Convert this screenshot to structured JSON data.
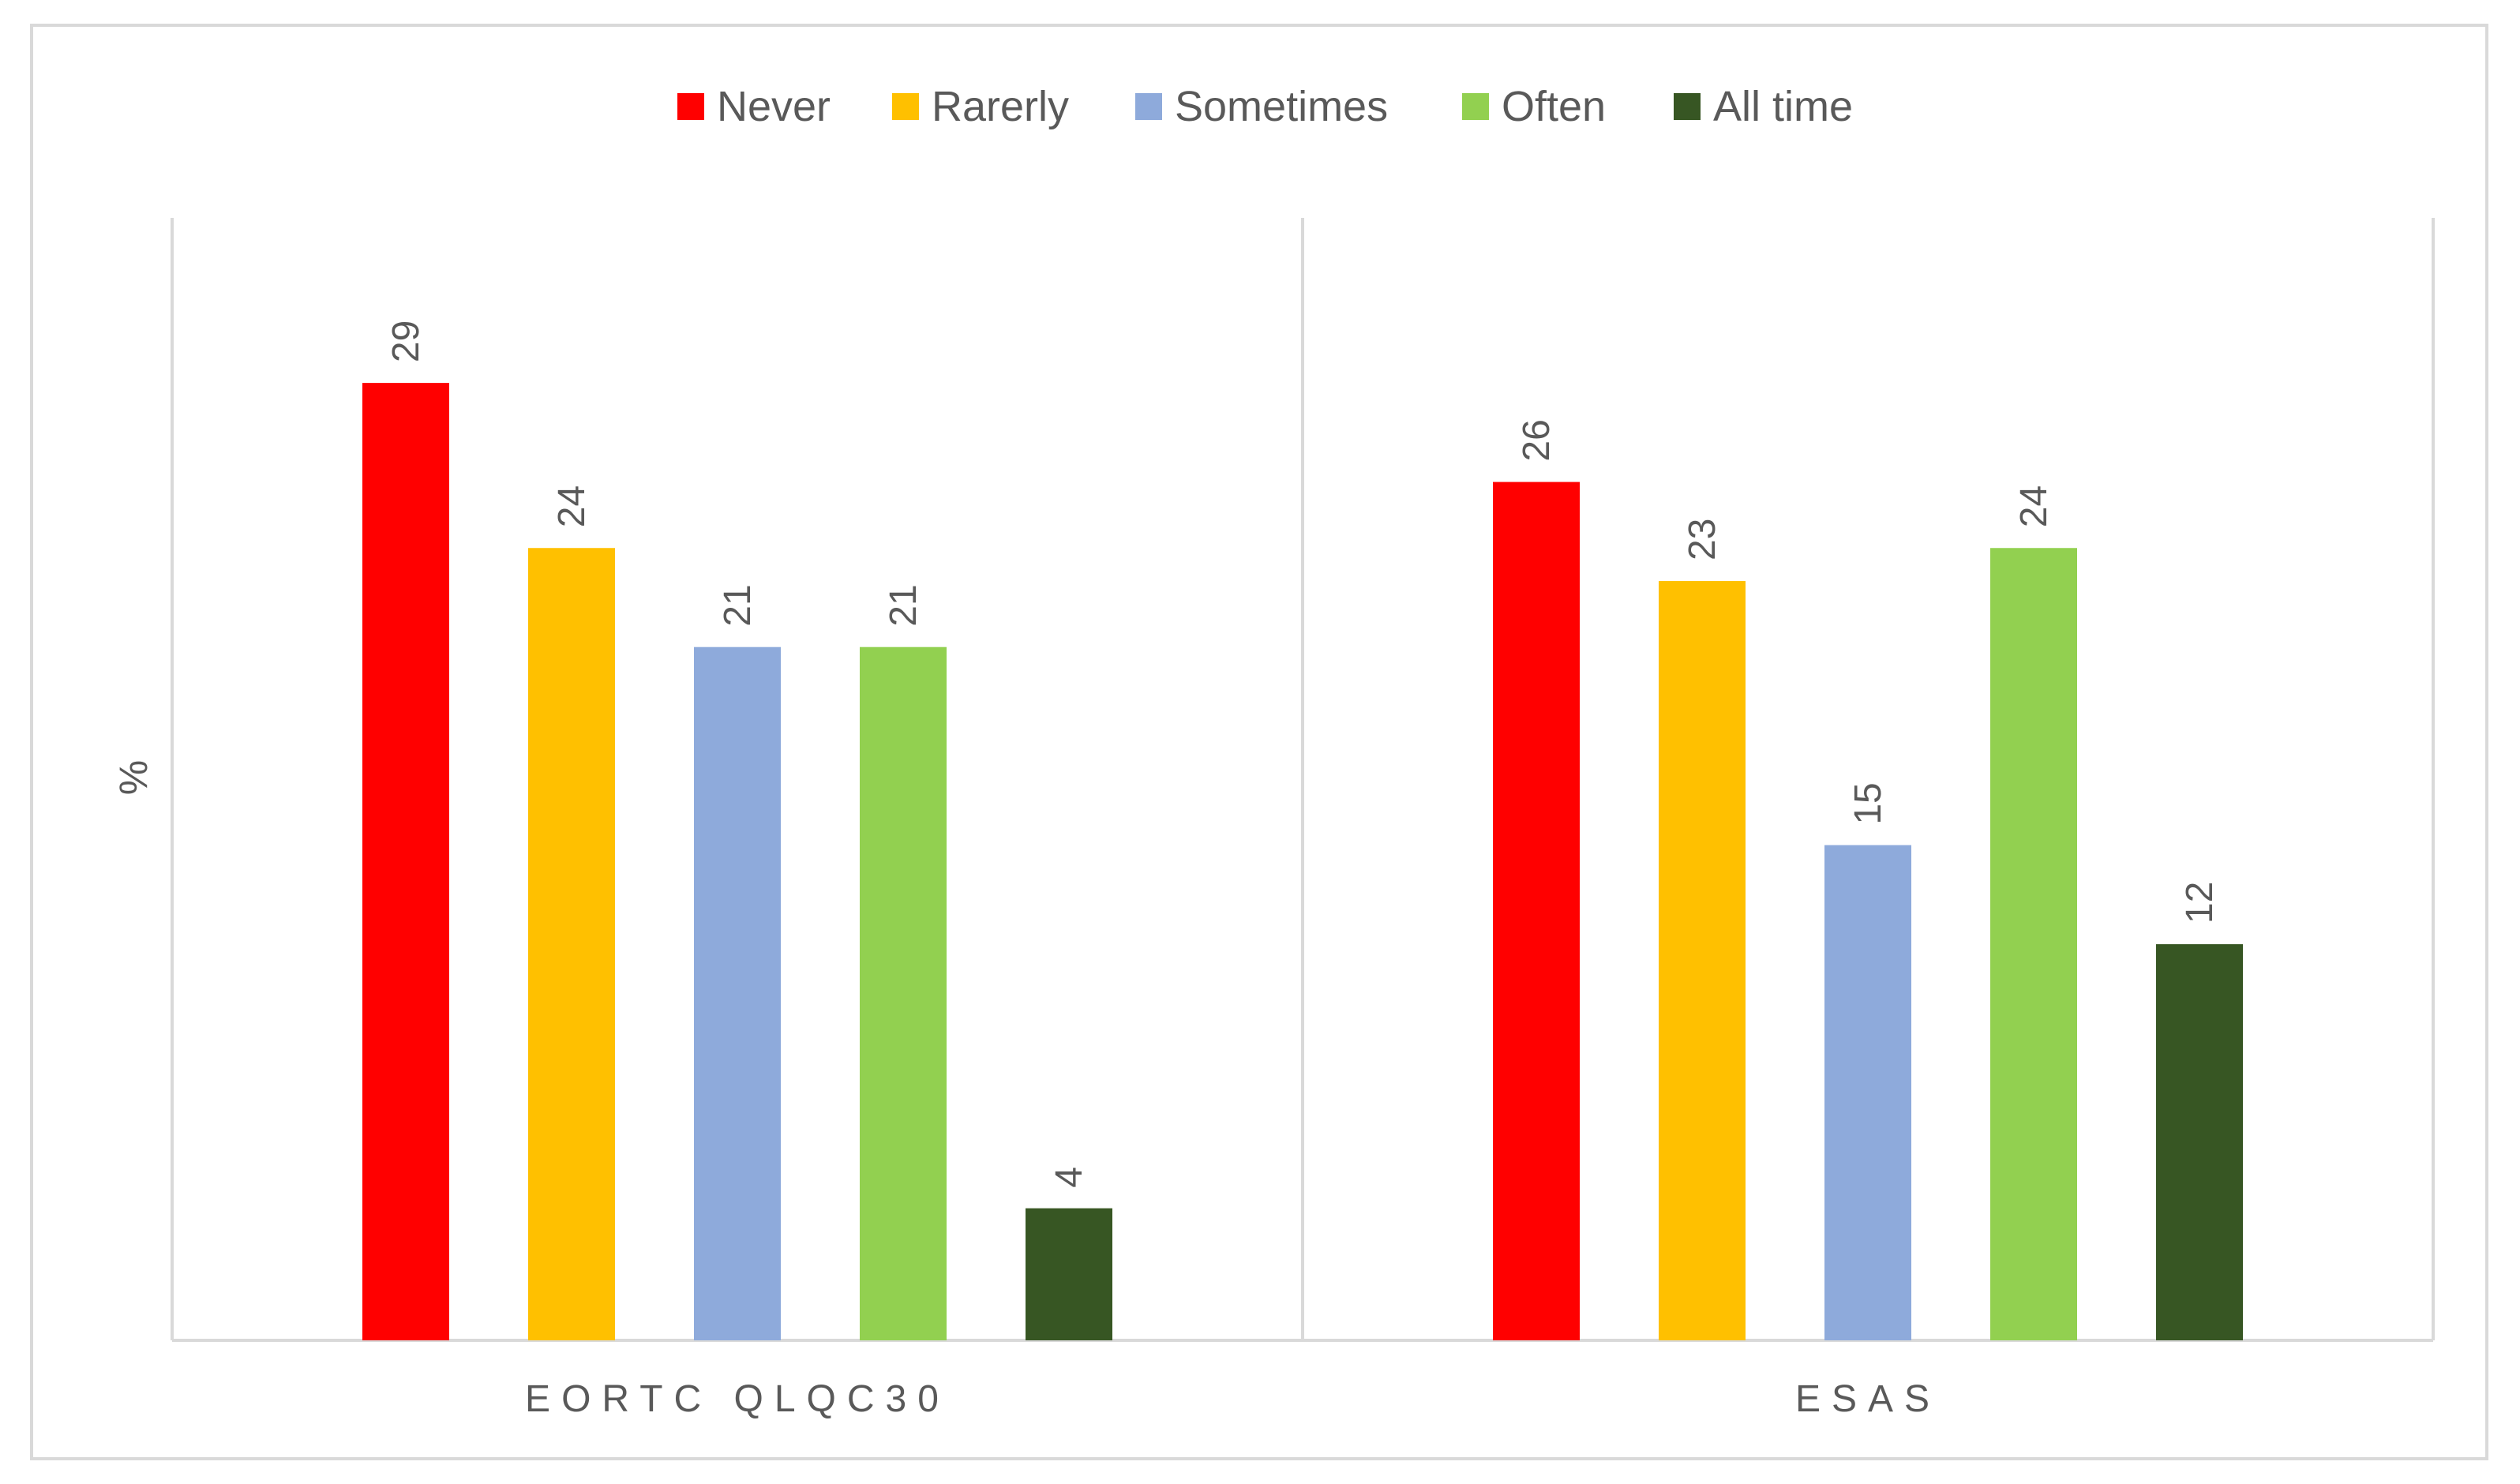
{
  "chart_data": {
    "type": "bar",
    "title": "",
    "xlabel": "",
    "ylabel": "%",
    "categories": [
      "EORTC QLQC30",
      "ESAS"
    ],
    "ylim": [
      0,
      34
    ],
    "grid": false,
    "legend_position": "top-center",
    "series": [
      {
        "name": "Never",
        "color": "#ff0000",
        "values": [
          29,
          26
        ]
      },
      {
        "name": "Rarerly",
        "color": "#ffc000",
        "values": [
          24,
          23
        ]
      },
      {
        "name": "Sometimes",
        "color": "#8eaadb",
        "values": [
          21,
          15
        ]
      },
      {
        "name": "Often",
        "color": "#92d050",
        "values": [
          21,
          24
        ]
      },
      {
        "name": "All time",
        "color": "#375623",
        "values": [
          4,
          12
        ]
      }
    ],
    "axis_color": "#d9d9d9"
  }
}
